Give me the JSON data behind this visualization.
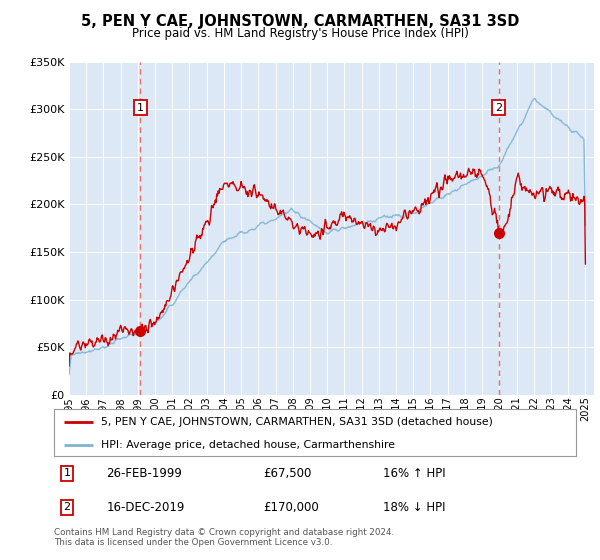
{
  "title": "5, PEN Y CAE, JOHNSTOWN, CARMARTHEN, SA31 3SD",
  "subtitle": "Price paid vs. HM Land Registry's House Price Index (HPI)",
  "legend_line1": "5, PEN Y CAE, JOHNSTOWN, CARMARTHEN, SA31 3SD (detached house)",
  "legend_line2": "HPI: Average price, detached house, Carmarthenshire",
  "annotation1_label": "1",
  "annotation1_date": "26-FEB-1999",
  "annotation1_price": "£67,500",
  "annotation1_hpi": "16% ↑ HPI",
  "annotation2_label": "2",
  "annotation2_date": "16-DEC-2019",
  "annotation2_price": "£170,000",
  "annotation2_hpi": "18% ↓ HPI",
  "footnote": "Contains HM Land Registry data © Crown copyright and database right 2024.\nThis data is licensed under the Open Government Licence v3.0.",
  "ylim": [
    0,
    350000
  ],
  "yticks": [
    0,
    50000,
    100000,
    150000,
    200000,
    250000,
    300000,
    350000
  ],
  "ytick_labels": [
    "£0",
    "£50K",
    "£100K",
    "£150K",
    "£200K",
    "£250K",
    "£300K",
    "£350K"
  ],
  "sale1_year": 1999.15,
  "sale1_price": 67500,
  "sale2_year": 2019.96,
  "sale2_price": 170000,
  "line_color_red": "#cc0000",
  "line_color_blue": "#7fb3d3",
  "vline_color": "#e87070",
  "marker_box_color": "#cc0000",
  "bg_color": "#dce8f5",
  "grid_color": "#ffffff",
  "sale_dot_color": "#cc0000",
  "xlim_start": 1995,
  "xlim_end": 2025.5
}
